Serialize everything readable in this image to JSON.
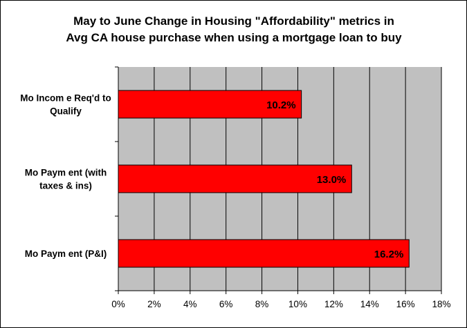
{
  "chart_data": {
    "type": "bar",
    "orientation": "horizontal",
    "title": [
      "May to June Change in Housing \"Affordability\" metrics in",
      "Avg CA house purchase when using a mortgage loan to buy"
    ],
    "categories": [
      [
        "Mo Incom e Req'd to",
        "Qualify"
      ],
      [
        "Mo Paym ent (with",
        "taxes & ins)"
      ],
      [
        "Mo Paym ent (P&I)"
      ]
    ],
    "values": [
      10.2,
      13.0,
      16.2
    ],
    "data_labels": [
      "10.2%",
      "13.0%",
      "16.2%"
    ],
    "xlim": [
      0,
      18
    ],
    "xticks": [
      0,
      2,
      4,
      6,
      8,
      10,
      12,
      14,
      16,
      18
    ],
    "xtick_labels": [
      "0%",
      "2%",
      "4%",
      "6%",
      "8%",
      "10%",
      "12%",
      "14%",
      "16%",
      "18%"
    ],
    "grid": true,
    "xlabel": "",
    "ylabel": "",
    "colors": {
      "bar_fill": "#ff0000",
      "bar_stroke": "#000000",
      "plot_background": "#c0c0c0",
      "gridline": "#000000",
      "chart_background": "#ffffff"
    }
  }
}
